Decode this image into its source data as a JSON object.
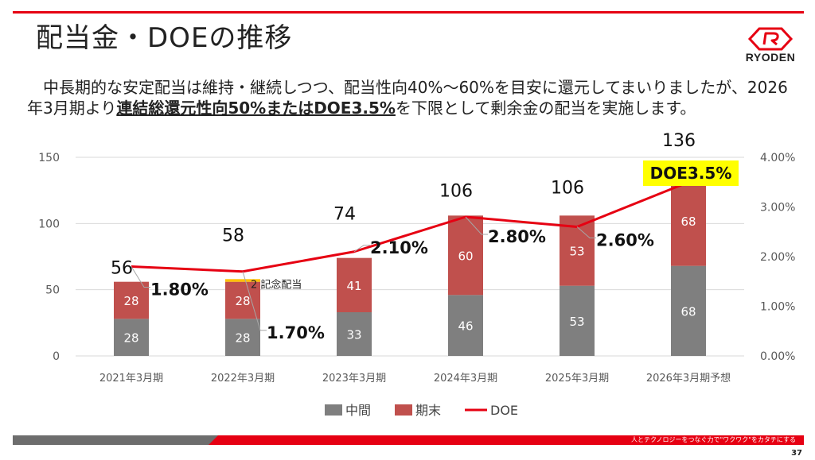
{
  "slide": {
    "title": "配当金・DOEの推移",
    "logo_text": "RYODEN",
    "intro_before": "　中長期的な安定配当は維持・継続しつつ、配当性向40%〜60%を目安に還元してまいりましたが、2026年3月期より",
    "intro_emph": "連結総還元性向50%またはDOE3.5%",
    "intro_after": "を下限として剰余金の配当を実施します。",
    "footer_slogan": "人とテクノロジーをつなぐ力で\"ワクワク\"をカタチにする",
    "page_number": "37"
  },
  "chart_data": {
    "type": "bar",
    "stacked": true,
    "categories": [
      "2021年3月期",
      "2022年3月期",
      "2023年3月期",
      "2024年3月期",
      "2025年3月期",
      "2026年3月期予想"
    ],
    "series": [
      {
        "name": "中間",
        "color": "#7f7f7f",
        "values": [
          28,
          28,
          33,
          46,
          53,
          68
        ]
      },
      {
        "name": "期末",
        "color": "#c0504d",
        "values": [
          28,
          28,
          41,
          60,
          53,
          68
        ]
      },
      {
        "name": "",
        "color": "#ffc000",
        "values": [
          0,
          2,
          0,
          0,
          0,
          0
        ]
      }
    ],
    "totals": [
      56,
      58,
      74,
      106,
      106,
      136
    ],
    "commemorative_label": "2 記念配当",
    "doe": {
      "name": "DOE",
      "color": "#e60012",
      "values": [
        1.8,
        1.7,
        2.1,
        2.8,
        2.6,
        3.5
      ],
      "labels": [
        "1.80%",
        "1.70%",
        "2.10%",
        "2.80%",
        "2.60%",
        "DOE3.5%"
      ]
    },
    "y_left": {
      "ticks": [
        "0",
        "50",
        "100",
        "150"
      ],
      "values": [
        0,
        50,
        100,
        150
      ],
      "ylim": [
        0,
        150
      ]
    },
    "y_right": {
      "ticks": [
        "0.00%",
        "1.00%",
        "2.00%",
        "3.00%",
        "4.00%"
      ],
      "values": [
        0,
        1,
        2,
        3,
        4
      ],
      "ylim": [
        0,
        4
      ]
    },
    "legend": [
      {
        "label": "中間",
        "color": "#7f7f7f",
        "kind": "box"
      },
      {
        "label": "期末",
        "color": "#c0504d",
        "kind": "box"
      },
      {
        "label": "DOE",
        "color": "#e60012",
        "kind": "line"
      }
    ],
    "legend_position": "bottom",
    "grid": true
  }
}
